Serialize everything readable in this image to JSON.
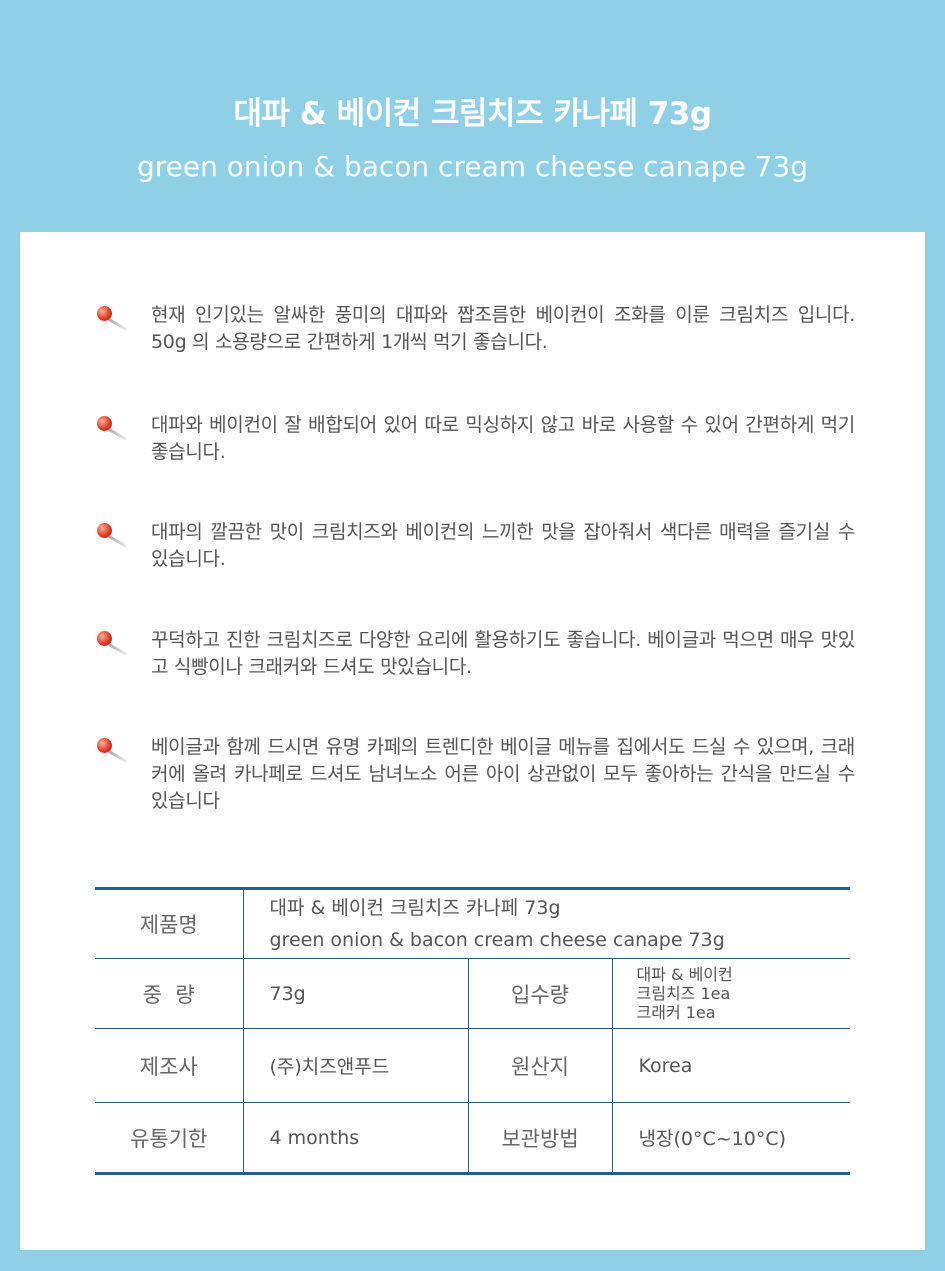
{
  "header": {
    "title": "대파 & 베이컨 크림치즈 카나페 73g",
    "subtitle": "green onion & bacon cream cheese canape 73g"
  },
  "bullets": [
    "현재 인기있는 알싸한 풍미의 대파와 짭조름한 베이컨이 조화를 이룬 크림치즈 입니다. 50g 의 소용량으로 간편하게 1개씩 먹기 좋습니다.",
    "대파와 베이컨이 잘 배합되어 있어 따로 믹싱하지 않고 바로 사용할 수 있어 간편하게 먹기 좋습니다.",
    "대파의 깔끔한 맛이 크림치즈와 베이컨의 느끼한 맛을 잡아줘서 색다른 매력을 즐기실 수 있습니다.",
    "꾸덕하고 진한 크림치즈로 다양한 요리에 활용하기도 좋습니다. 베이글과 먹으면 매우 맛있고 식빵이나 크래커와 드셔도 맛있습니다.",
    "베이글과 함께 드시면 유명 카페의 트렌디한 베이글 메뉴를 집에서도 드실 수 있으며, 크래커에 올려 카나페로 드셔도 남녀노소 어른 아이 상관없이 모두 좋아하는 간식을 만드실 수 있습니다"
  ],
  "table": {
    "name_label": "제품명",
    "name_ko": "대파 & 베이컨 크림치즈 카나페 73g",
    "name_en": "green onion & bacon cream cheese canape 73g",
    "weight_label": "중  량",
    "weight": "73g",
    "contents_label": "입수량",
    "contents": [
      "대파 & 베이컨",
      "크림치즈 1ea",
      "크래커 1ea"
    ],
    "maker_label": "제조사",
    "maker": "(주)치즈앤푸드",
    "origin_label": "원산지",
    "origin": "Korea",
    "expiry_label": "유통기한",
    "expiry": "4 months",
    "storage_label": "보관방법",
    "storage": "냉장(0°C~10°C)"
  },
  "colors": {
    "background": "#8fd0e7",
    "table_border": "#2a5a95"
  }
}
